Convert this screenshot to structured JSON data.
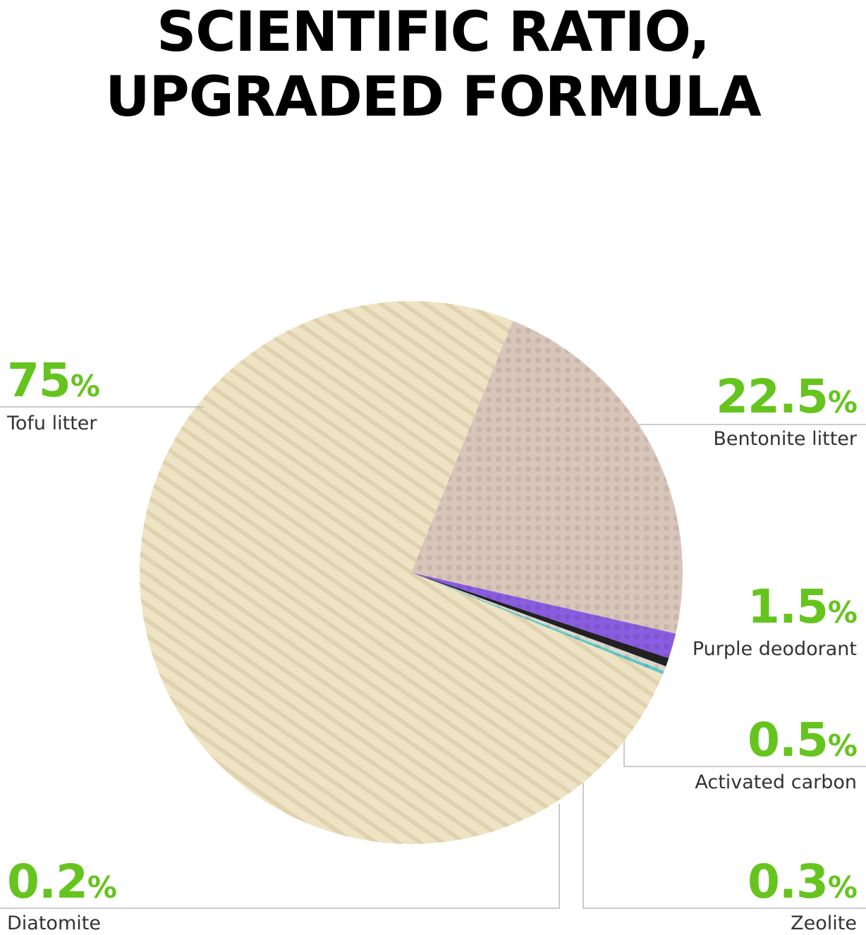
{
  "title": [
    "SCIENTIFIC RATIO,",
    "UPGRADED FORMULA"
  ],
  "accent_color": "#66c41e",
  "percent_symbol": "%",
  "chart_data": {
    "type": "pie",
    "title": "SCIENTIFIC RATIO, UPGRADED FORMULA",
    "slices": [
      {
        "name": "Bentonite litter",
        "value": 22.5,
        "label": "22.5",
        "color": "#d9c6ba"
      },
      {
        "name": "Purple deodorant",
        "value": 1.5,
        "label": "1.5",
        "color": "#8a5ce0"
      },
      {
        "name": "Activated carbon",
        "value": 0.5,
        "label": "0.5",
        "color": "#222222"
      },
      {
        "name": "Zeolite",
        "value": 0.3,
        "label": "0.3",
        "color": "#dcd8cc"
      },
      {
        "name": "Diatomite",
        "value": 0.2,
        "label": "0.2",
        "color": "#5ec6c9"
      },
      {
        "name": "Tofu litter",
        "value": 75,
        "label": "75",
        "color": "#eee4c4"
      }
    ]
  }
}
